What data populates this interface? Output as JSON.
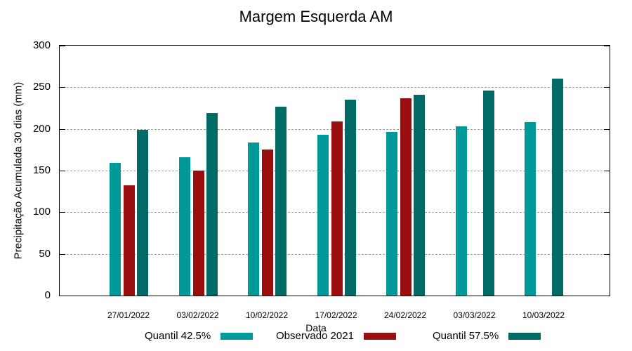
{
  "chart_data": {
    "type": "bar",
    "title": "Margem Esquerda AM",
    "xlabel": "Data",
    "ylabel": "Precipitação Acumulada 30 dias (mm)",
    "ylim": [
      0,
      300
    ],
    "yticks": [
      0,
      50,
      100,
      150,
      200,
      250,
      300
    ],
    "grid": true,
    "legend_position": "bottom",
    "categories": [
      "27/01/2022",
      "03/02/2022",
      "10/02/2022",
      "17/02/2022",
      "24/02/2022",
      "03/03/2022",
      "10/03/2022"
    ],
    "series": [
      {
        "name": "Quantil 42.5%",
        "color": "#009999",
        "values": [
          159,
          166,
          184,
          193,
          196,
          203,
          208
        ]
      },
      {
        "name": "Observado 2021",
        "color": "#990f0f",
        "values": [
          132,
          150,
          175,
          209,
          237,
          null,
          null
        ]
      },
      {
        "name": "Quantil 57.5%",
        "color": "#006a66",
        "values": [
          199,
          219,
          227,
          235,
          241,
          246,
          260
        ]
      }
    ]
  }
}
